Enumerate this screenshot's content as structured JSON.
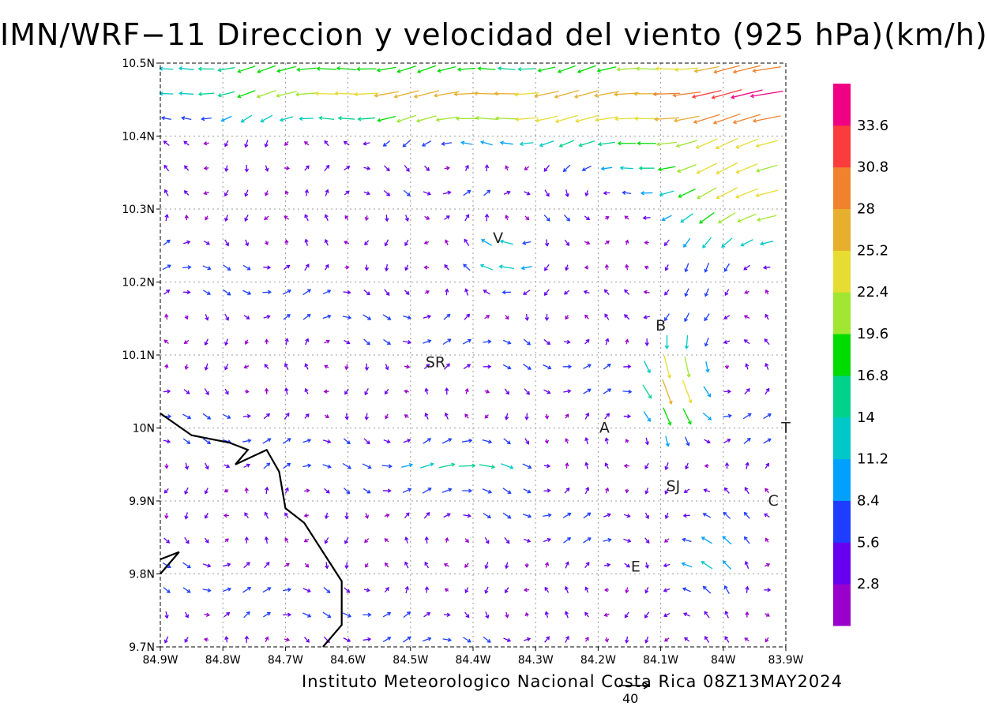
{
  "title": "IMN/WRF−11 Direccion y velocidad del viento (925 hPa)(km/h)",
  "footer": "Instituto Meteorologico Nacional Costa Rica 08Z13MAY2024",
  "reference_vector_label": "40",
  "chart_data": {
    "type": "vector-field",
    "lon_range": [
      -84.9,
      -83.9
    ],
    "lat_range": [
      9.7,
      10.5
    ],
    "x_ticks": [
      "84.9W",
      "84.8W",
      "84.7W",
      "84.6W",
      "84.5W",
      "84.4W",
      "84.3W",
      "84.2W",
      "84.1W",
      "84W",
      "83.9W"
    ],
    "y_ticks": [
      "9.7N",
      "9.8N",
      "9.9N",
      "10N",
      "10.1N",
      "10.2N",
      "10.3N",
      "10.4N",
      "10.5N"
    ],
    "grid": true,
    "colorbar": {
      "labels": [
        "2.8",
        "5.6",
        "8.4",
        "11.2",
        "14",
        "16.8",
        "19.6",
        "22.4",
        "25.2",
        "28",
        "30.8",
        "33.6"
      ],
      "colors": [
        "#9900cc",
        "#6600ee",
        "#1f3dff",
        "#00a0ff",
        "#00c8c8",
        "#00d28c",
        "#00dc00",
        "#a0e632",
        "#e6dc32",
        "#e6af2d",
        "#f0822d",
        "#fa3c3c",
        "#f00082"
      ]
    },
    "places": [
      {
        "name": "V",
        "lon": -84.36,
        "lat": 10.26
      },
      {
        "name": "B",
        "lon": -84.1,
        "lat": 10.14
      },
      {
        "name": "SR",
        "lon": -84.46,
        "lat": 10.09
      },
      {
        "name": "A",
        "lon": -84.19,
        "lat": 10.0
      },
      {
        "name": "SJ",
        "lon": -84.08,
        "lat": 9.92
      },
      {
        "name": "C",
        "lon": -83.92,
        "lat": 9.9
      },
      {
        "name": "E",
        "lon": -84.14,
        "lat": 9.81
      },
      {
        "name": "T",
        "lon": -83.9,
        "lat": 10.0
      }
    ],
    "coastline": [
      [
        [
          -84.9,
          10.02
        ],
        [
          -84.85,
          9.99
        ],
        [
          -84.79,
          9.98
        ],
        [
          -84.76,
          9.97
        ],
        [
          -84.78,
          9.95
        ],
        [
          -84.73,
          9.97
        ],
        [
          -84.71,
          9.94
        ],
        [
          -84.7,
          9.89
        ],
        [
          -84.67,
          9.87
        ],
        [
          -84.64,
          9.83
        ],
        [
          -84.61,
          9.79
        ],
        [
          -84.61,
          9.73
        ],
        [
          -84.64,
          9.7
        ]
      ],
      [
        [
          -84.9,
          9.8
        ],
        [
          -84.87,
          9.83
        ],
        [
          -84.9,
          9.82
        ]
      ]
    ],
    "reference_vector_speed": 40
  }
}
